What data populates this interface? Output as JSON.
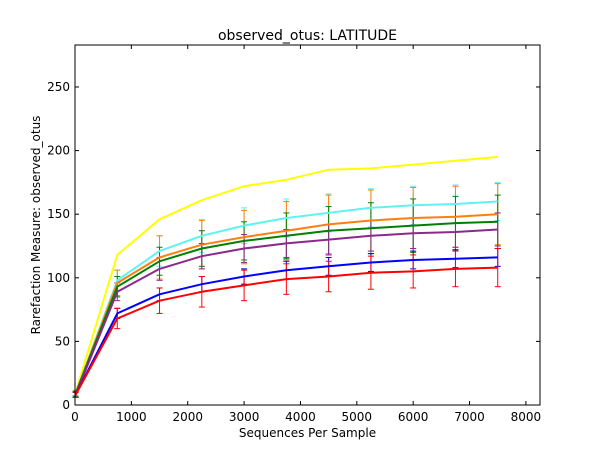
{
  "chart_data": {
    "type": "line",
    "title": "observed_otus: LATITUDE",
    "xlabel": "Sequences Per Sample",
    "ylabel": "Rarefaction Measure: observed_otus",
    "xlim": [
      0,
      8250
    ],
    "ylim": [
      0,
      283
    ],
    "xticks": [
      0,
      1000,
      2000,
      3000,
      4000,
      5000,
      6000,
      7000,
      8000
    ],
    "yticks": [
      0,
      50,
      100,
      150,
      200,
      250
    ],
    "grid": false,
    "legend": "none",
    "x": [
      10,
      750,
      1500,
      2250,
      3000,
      3750,
      4500,
      5250,
      6000,
      6750,
      7500
    ],
    "series": [
      {
        "color": "#ffff00",
        "values": [
          10,
          118,
          146,
          161,
          172,
          177,
          185,
          186,
          189,
          192,
          195
        ],
        "errors": [
          0,
          0,
          0,
          0,
          0,
          0,
          0,
          0,
          0,
          0,
          0
        ]
      },
      {
        "color": "#5ff2f2",
        "values": [
          9,
          98,
          121,
          133,
          141,
          147,
          151,
          155,
          157,
          158,
          160
        ],
        "errors": [
          2,
          8,
          12,
          13,
          14,
          15,
          15,
          15,
          15,
          15,
          15
        ]
      },
      {
        "color": "#ff7f0e",
        "values": [
          9,
          96,
          116,
          126,
          132,
          137,
          142,
          145,
          147,
          148,
          150
        ],
        "errors": [
          2,
          10,
          17,
          19,
          21,
          23,
          23,
          24,
          24,
          24,
          24
        ]
      },
      {
        "color": "#008000",
        "values": [
          9,
          93,
          113,
          123,
          129,
          133,
          137,
          139,
          141,
          143,
          144
        ],
        "errors": [
          2,
          8,
          11,
          14,
          15,
          18,
          19,
          20,
          21,
          21,
          21
        ]
      },
      {
        "color": "#8b2a8b",
        "values": [
          8,
          89,
          107,
          117,
          123,
          127,
          130,
          133,
          135,
          136,
          138
        ],
        "errors": [
          2,
          7,
          9,
          10,
          11,
          11,
          12,
          12,
          12,
          12,
          13
        ]
      },
      {
        "color": "#0000ff",
        "values": [
          8,
          72,
          87,
          95,
          101,
          106,
          109,
          112,
          114,
          115,
          116
        ],
        "errors": [
          2,
          4,
          5,
          6,
          6,
          7,
          7,
          7,
          7,
          7,
          7
        ]
      },
      {
        "color": "#ff0000",
        "values": [
          8,
          68,
          82,
          89,
          94,
          99,
          101,
          104,
          105,
          107,
          108
        ],
        "errors": [
          2,
          8,
          10,
          12,
          12,
          12,
          12,
          13,
          13,
          14,
          15
        ]
      }
    ]
  }
}
